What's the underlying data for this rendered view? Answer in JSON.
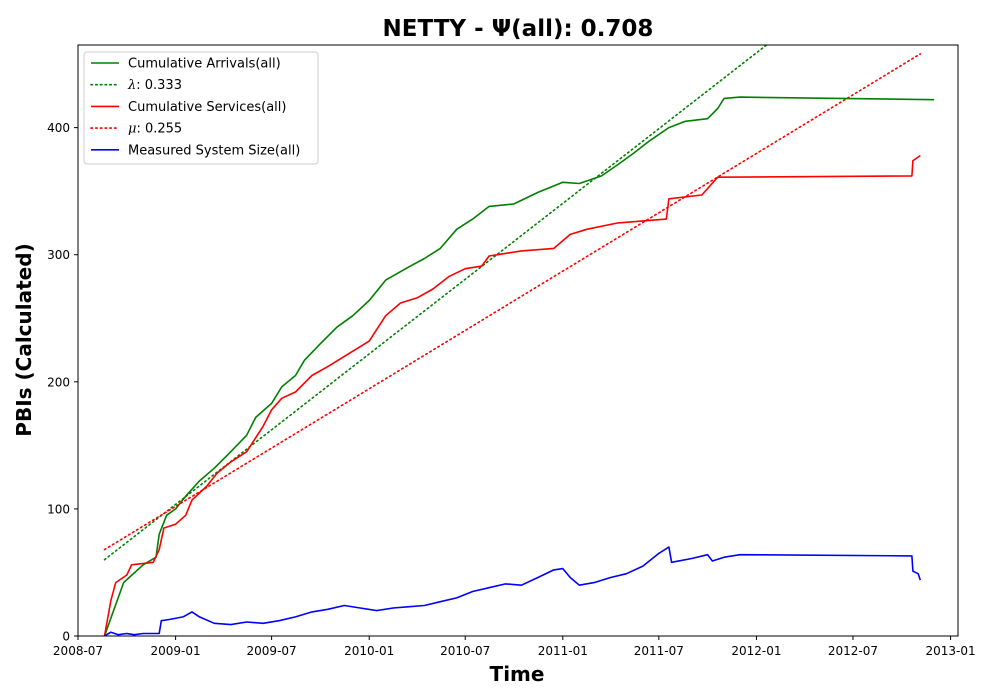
{
  "chart_data": {
    "type": "line",
    "title": "NETTY -  Ψ(all): 0.708",
    "xlabel": "Time",
    "ylabel": "PBIs (Calculated)",
    "xlim": [
      "2008-07-01",
      "2013-01-15"
    ],
    "ylim": [
      0,
      465
    ],
    "x_ticks": [
      "2008-07",
      "2009-01",
      "2009-07",
      "2010-01",
      "2010-07",
      "2011-01",
      "2011-07",
      "2012-01",
      "2012-07",
      "2013-01"
    ],
    "x_tick_labels": [
      "2008-07",
      "2009-01",
      "2009-07",
      "2010-01",
      "2010-07",
      "2011-01",
      "2011-07",
      "2012-01",
      "2012-07",
      "2013-01"
    ],
    "y_ticks": [
      0,
      100,
      200,
      300,
      400
    ],
    "y_tick_labels": [
      "0",
      "100",
      "200",
      "300",
      "400"
    ],
    "grid": false,
    "legend_position": "top-left",
    "series": [
      {
        "name": "Cumulative Arrivals(all)",
        "color": "#008000",
        "style": "solid",
        "points": [
          [
            "2008-08-20",
            0
          ],
          [
            "2008-09-25",
            42
          ],
          [
            "2008-11-01",
            56
          ],
          [
            "2008-11-25",
            62
          ],
          [
            "2008-12-01",
            80
          ],
          [
            "2008-12-15",
            95
          ],
          [
            "2009-01-01",
            100
          ],
          [
            "2009-01-20",
            110
          ],
          [
            "2009-02-15",
            122
          ],
          [
            "2009-03-15",
            132
          ],
          [
            "2009-04-15",
            145
          ],
          [
            "2009-05-15",
            158
          ],
          [
            "2009-06-01",
            172
          ],
          [
            "2009-07-01",
            183
          ],
          [
            "2009-07-20",
            196
          ],
          [
            "2009-08-15",
            205
          ],
          [
            "2009-09-01",
            217
          ],
          [
            "2009-10-01",
            230
          ],
          [
            "2009-11-01",
            243
          ],
          [
            "2009-12-01",
            252
          ],
          [
            "2010-01-01",
            264
          ],
          [
            "2010-02-01",
            280
          ],
          [
            "2010-03-15",
            290
          ],
          [
            "2010-04-15",
            297
          ],
          [
            "2010-05-15",
            305
          ],
          [
            "2010-06-15",
            320
          ],
          [
            "2010-07-15",
            328
          ],
          [
            "2010-08-15",
            338
          ],
          [
            "2010-10-01",
            340
          ],
          [
            "2010-11-15",
            349
          ],
          [
            "2011-01-01",
            357
          ],
          [
            "2011-02-01",
            356
          ],
          [
            "2011-03-15",
            362
          ],
          [
            "2011-04-15",
            371
          ],
          [
            "2011-05-15",
            380
          ],
          [
            "2011-06-15",
            390
          ],
          [
            "2011-07-20",
            400
          ],
          [
            "2011-08-20",
            405
          ],
          [
            "2011-10-01",
            407
          ],
          [
            "2011-10-20",
            415
          ],
          [
            "2011-11-01",
            423
          ],
          [
            "2011-12-01",
            424
          ],
          [
            "2012-12-01",
            422
          ]
        ]
      },
      {
        "name": "λ: 0.333",
        "label_symbol": "λ",
        "label_value": ": 0.333",
        "color": "#008000",
        "style": "dotted",
        "points": [
          [
            "2008-08-20",
            60
          ],
          [
            "2012-01-20",
            465
          ]
        ]
      },
      {
        "name": "Cumulative Services(all)",
        "color": "#ff0000",
        "style": "solid",
        "points": [
          [
            "2008-08-20",
            0
          ],
          [
            "2008-09-01",
            28
          ],
          [
            "2008-09-10",
            42
          ],
          [
            "2008-10-01",
            48
          ],
          [
            "2008-10-10",
            56
          ],
          [
            "2008-11-20",
            58
          ],
          [
            "2008-12-01",
            68
          ],
          [
            "2008-12-10",
            85
          ],
          [
            "2009-01-01",
            88
          ],
          [
            "2009-01-20",
            95
          ],
          [
            "2009-02-01",
            107
          ],
          [
            "2009-03-01",
            118
          ],
          [
            "2009-03-20",
            128
          ],
          [
            "2009-04-15",
            137
          ],
          [
            "2009-05-15",
            145
          ],
          [
            "2009-06-15",
            165
          ],
          [
            "2009-07-01",
            178
          ],
          [
            "2009-07-20",
            187
          ],
          [
            "2009-08-15",
            192
          ],
          [
            "2009-09-15",
            205
          ],
          [
            "2009-10-15",
            212
          ],
          [
            "2009-11-15",
            220
          ],
          [
            "2010-01-01",
            232
          ],
          [
            "2010-02-01",
            252
          ],
          [
            "2010-03-01",
            262
          ],
          [
            "2010-04-01",
            266
          ],
          [
            "2010-05-01",
            273
          ],
          [
            "2010-06-01",
            283
          ],
          [
            "2010-07-01",
            289
          ],
          [
            "2010-08-01",
            291
          ],
          [
            "2010-08-15",
            299
          ],
          [
            "2010-09-15",
            301
          ],
          [
            "2010-10-15",
            303
          ],
          [
            "2010-12-15",
            305
          ],
          [
            "2011-01-15",
            316
          ],
          [
            "2011-02-15",
            320
          ],
          [
            "2011-04-15",
            325
          ],
          [
            "2011-05-15",
            326
          ],
          [
            "2011-07-15",
            328
          ],
          [
            "2011-07-20",
            344
          ],
          [
            "2011-09-20",
            347
          ],
          [
            "2011-10-20",
            361
          ],
          [
            "2012-10-20",
            362
          ],
          [
            "2012-10-22",
            374
          ],
          [
            "2012-11-05",
            378
          ]
        ]
      },
      {
        "name": "μ: 0.255",
        "label_symbol": "μ",
        "label_value": ": 0.255",
        "color": "#ff0000",
        "style": "dotted",
        "points": [
          [
            "2008-08-20",
            68
          ],
          [
            "2012-11-05",
            458
          ]
        ]
      },
      {
        "name": "Measured System Size(all)",
        "color": "#0000ff",
        "style": "solid",
        "points": [
          [
            "2008-08-20",
            0
          ],
          [
            "2008-09-01",
            3
          ],
          [
            "2008-09-15",
            1
          ],
          [
            "2008-10-01",
            2
          ],
          [
            "2008-10-15",
            1
          ],
          [
            "2008-11-01",
            2
          ],
          [
            "2008-11-20",
            2
          ],
          [
            "2008-12-01",
            2
          ],
          [
            "2008-12-05",
            12
          ],
          [
            "2008-12-20",
            13
          ],
          [
            "2009-01-15",
            15
          ],
          [
            "2009-02-01",
            19
          ],
          [
            "2009-02-15",
            15
          ],
          [
            "2009-03-15",
            10
          ],
          [
            "2009-04-15",
            9
          ],
          [
            "2009-05-15",
            11
          ],
          [
            "2009-06-15",
            10
          ],
          [
            "2009-07-15",
            12
          ],
          [
            "2009-08-15",
            15
          ],
          [
            "2009-09-15",
            19
          ],
          [
            "2009-10-15",
            21
          ],
          [
            "2009-11-15",
            24
          ],
          [
            "2009-12-15",
            22
          ],
          [
            "2010-01-15",
            20
          ],
          [
            "2010-02-15",
            22
          ],
          [
            "2010-03-15",
            23
          ],
          [
            "2010-04-15",
            24
          ],
          [
            "2010-05-15",
            27
          ],
          [
            "2010-06-15",
            30
          ],
          [
            "2010-07-15",
            35
          ],
          [
            "2010-08-15",
            38
          ],
          [
            "2010-09-15",
            41
          ],
          [
            "2010-10-15",
            40
          ],
          [
            "2010-11-15",
            46
          ],
          [
            "2010-12-15",
            52
          ],
          [
            "2011-01-01",
            53
          ],
          [
            "2011-01-15",
            46
          ],
          [
            "2011-02-01",
            40
          ],
          [
            "2011-03-01",
            42
          ],
          [
            "2011-04-01",
            46
          ],
          [
            "2011-05-01",
            49
          ],
          [
            "2011-06-01",
            55
          ],
          [
            "2011-07-01",
            65
          ],
          [
            "2011-07-20",
            70
          ],
          [
            "2011-07-25",
            58
          ],
          [
            "2011-09-01",
            61
          ],
          [
            "2011-10-01",
            64
          ],
          [
            "2011-10-10",
            59
          ],
          [
            "2011-11-01",
            62
          ],
          [
            "2011-12-01",
            64
          ],
          [
            "2012-10-20",
            63
          ],
          [
            "2012-10-22",
            51
          ],
          [
            "2012-11-01",
            49
          ],
          [
            "2012-11-05",
            44
          ]
        ]
      }
    ]
  }
}
